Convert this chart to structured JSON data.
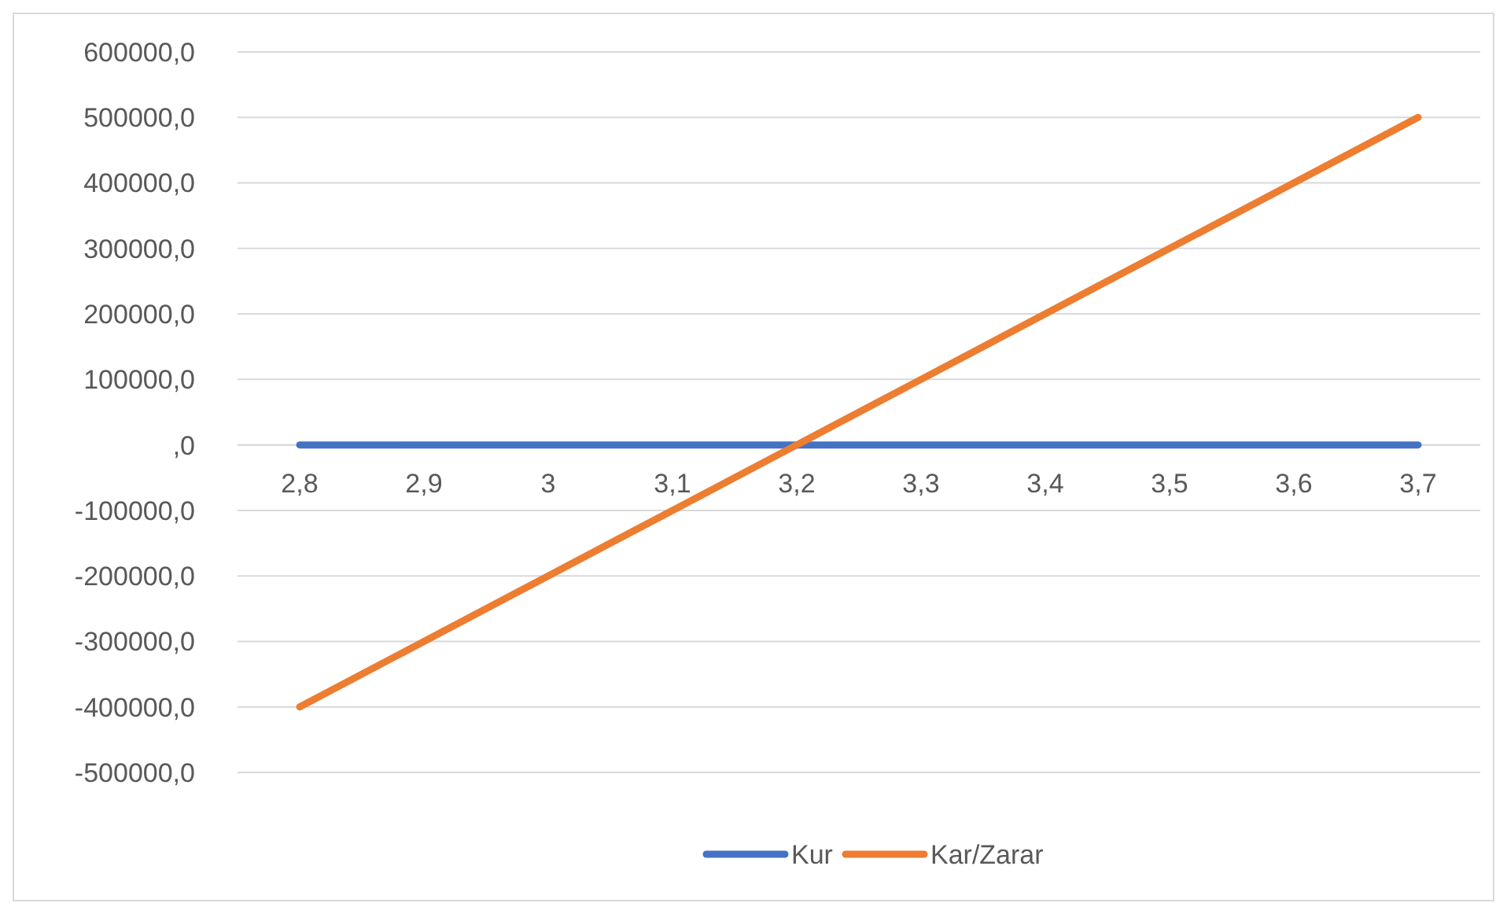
{
  "chart_data": {
    "type": "line",
    "categories": [
      "2,8",
      "2,9",
      "3",
      "3,1",
      "3,2",
      "3,3",
      "3,4",
      "3,5",
      "3,6",
      "3,7"
    ],
    "series": [
      {
        "name": "Kur",
        "color": "#4472c4",
        "values": [
          0,
          0,
          0,
          0,
          0,
          0,
          0,
          0,
          0,
          0
        ]
      },
      {
        "name": "Kar/Zarar",
        "color": "#ed7d31",
        "values": [
          -400000,
          -300000,
          -200000,
          -100000,
          0,
          100000,
          200000,
          300000,
          400000,
          500000
        ]
      }
    ],
    "ylim": [
      -500000,
      600000
    ],
    "yticks": [
      {
        "value": -500000,
        "label": "-500000,0"
      },
      {
        "value": -400000,
        "label": "-400000,0"
      },
      {
        "value": -300000,
        "label": "-300000,0"
      },
      {
        "value": -200000,
        "label": "-200000,0"
      },
      {
        "value": -100000,
        "label": "-100000,0"
      },
      {
        "value": 0,
        "label": ",0"
      },
      {
        "value": 100000,
        "label": "100000,0"
      },
      {
        "value": 200000,
        "label": "200000,0"
      },
      {
        "value": 300000,
        "label": "300000,0"
      },
      {
        "value": 400000,
        "label": "400000,0"
      },
      {
        "value": 500000,
        "label": "500000,0"
      },
      {
        "value": 600000,
        "label": "600000,0"
      }
    ],
    "grid": "y",
    "legend": "bottom",
    "marker": "none",
    "line_style": "solid"
  }
}
